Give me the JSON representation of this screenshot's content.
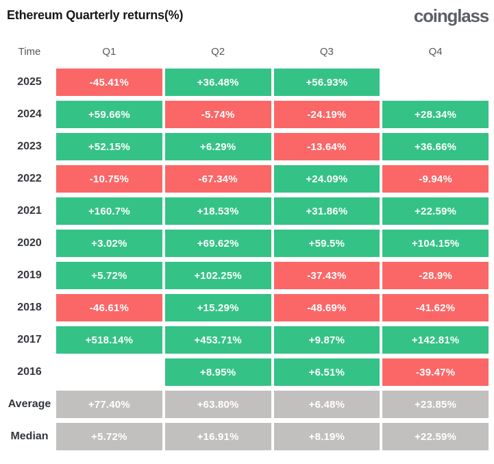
{
  "header": {
    "title": "Ethereum Quarterly returns(%)",
    "logo": "coinglass"
  },
  "table": {
    "columns": [
      "Time",
      "Q1",
      "Q2",
      "Q3",
      "Q4"
    ],
    "colors": {
      "positive": "#35c286",
      "negative": "#fb6767",
      "neutral": "#c1c0bf"
    },
    "rows": [
      {
        "label": "2025",
        "cells": [
          {
            "text": "-45.41%",
            "type": "neg"
          },
          {
            "text": "+36.48%",
            "type": "pos"
          },
          {
            "text": "+56.93%",
            "type": "pos"
          },
          {
            "text": "",
            "type": "empty"
          }
        ]
      },
      {
        "label": "2024",
        "cells": [
          {
            "text": "+59.66%",
            "type": "pos"
          },
          {
            "text": "-5.74%",
            "type": "neg"
          },
          {
            "text": "-24.19%",
            "type": "neg"
          },
          {
            "text": "+28.34%",
            "type": "pos"
          }
        ]
      },
      {
        "label": "2023",
        "cells": [
          {
            "text": "+52.15%",
            "type": "pos"
          },
          {
            "text": "+6.29%",
            "type": "pos"
          },
          {
            "text": "-13.64%",
            "type": "neg"
          },
          {
            "text": "+36.66%",
            "type": "pos"
          }
        ]
      },
      {
        "label": "2022",
        "cells": [
          {
            "text": "-10.75%",
            "type": "neg"
          },
          {
            "text": "-67.34%",
            "type": "neg"
          },
          {
            "text": "+24.09%",
            "type": "pos"
          },
          {
            "text": "-9.94%",
            "type": "neg"
          }
        ]
      },
      {
        "label": "2021",
        "cells": [
          {
            "text": "+160.7%",
            "type": "pos"
          },
          {
            "text": "+18.53%",
            "type": "pos"
          },
          {
            "text": "+31.86%",
            "type": "pos"
          },
          {
            "text": "+22.59%",
            "type": "pos"
          }
        ]
      },
      {
        "label": "2020",
        "cells": [
          {
            "text": "+3.02%",
            "type": "pos"
          },
          {
            "text": "+69.62%",
            "type": "pos"
          },
          {
            "text": "+59.5%",
            "type": "pos"
          },
          {
            "text": "+104.15%",
            "type": "pos"
          }
        ]
      },
      {
        "label": "2019",
        "cells": [
          {
            "text": "+5.72%",
            "type": "pos"
          },
          {
            "text": "+102.25%",
            "type": "pos"
          },
          {
            "text": "-37.43%",
            "type": "neg"
          },
          {
            "text": "-28.9%",
            "type": "neg"
          }
        ]
      },
      {
        "label": "2018",
        "cells": [
          {
            "text": "-46.61%",
            "type": "neg"
          },
          {
            "text": "+15.29%",
            "type": "pos"
          },
          {
            "text": "-48.69%",
            "type": "neg"
          },
          {
            "text": "-41.62%",
            "type": "neg"
          }
        ]
      },
      {
        "label": "2017",
        "cells": [
          {
            "text": "+518.14%",
            "type": "pos"
          },
          {
            "text": "+453.71%",
            "type": "pos"
          },
          {
            "text": "+9.87%",
            "type": "pos"
          },
          {
            "text": "+142.81%",
            "type": "pos"
          }
        ]
      },
      {
        "label": "2016",
        "cells": [
          {
            "text": "",
            "type": "empty"
          },
          {
            "text": "+8.95%",
            "type": "pos"
          },
          {
            "text": "+6.51%",
            "type": "pos"
          },
          {
            "text": "-39.47%",
            "type": "neg"
          }
        ]
      },
      {
        "label": "Average",
        "cells": [
          {
            "text": "+77.40%",
            "type": "avg"
          },
          {
            "text": "+63.80%",
            "type": "avg"
          },
          {
            "text": "+6.48%",
            "type": "avg"
          },
          {
            "text": "+23.85%",
            "type": "avg"
          }
        ]
      },
      {
        "label": "Median",
        "cells": [
          {
            "text": "+5.72%",
            "type": "avg"
          },
          {
            "text": "+16.91%",
            "type": "avg"
          },
          {
            "text": "+8.19%",
            "type": "avg"
          },
          {
            "text": "+22.59%",
            "type": "avg"
          }
        ]
      }
    ]
  },
  "chart_data": {
    "type": "heatmap",
    "title": "Ethereum Quarterly returns(%)",
    "columns": [
      "Q1",
      "Q2",
      "Q3",
      "Q4"
    ],
    "rows": [
      "2025",
      "2024",
      "2023",
      "2022",
      "2021",
      "2020",
      "2019",
      "2018",
      "2017",
      "2016",
      "Average",
      "Median"
    ],
    "values": [
      [
        -45.41,
        36.48,
        56.93,
        null
      ],
      [
        59.66,
        -5.74,
        -24.19,
        28.34
      ],
      [
        52.15,
        6.29,
        -13.64,
        36.66
      ],
      [
        -10.75,
        -67.34,
        24.09,
        -9.94
      ],
      [
        160.7,
        18.53,
        31.86,
        22.59
      ],
      [
        3.02,
        69.62,
        59.5,
        104.15
      ],
      [
        5.72,
        102.25,
        -37.43,
        -28.9
      ],
      [
        -46.61,
        15.29,
        -48.69,
        -41.62
      ],
      [
        518.14,
        453.71,
        9.87,
        142.81
      ],
      [
        null,
        8.95,
        6.51,
        -39.47
      ],
      [
        77.4,
        63.8,
        6.48,
        23.85
      ],
      [
        5.72,
        16.91,
        8.19,
        22.59
      ]
    ],
    "unit": "%",
    "color_coding": {
      "positive": "#35c286",
      "negative": "#fb6767",
      "summary_rows": "#c1c0bf"
    }
  }
}
